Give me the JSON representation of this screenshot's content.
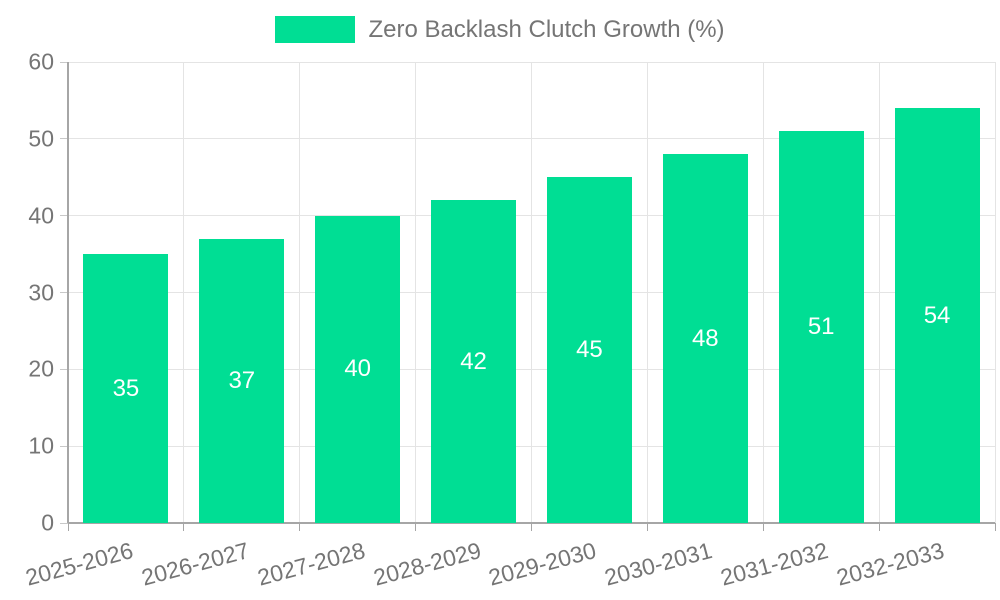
{
  "chart_data": {
    "type": "bar",
    "title": "",
    "legend": {
      "label": "Zero Backlash Clutch Growth (%)",
      "position": "top-center"
    },
    "categories": [
      "2025-2026",
      "2026-2027",
      "2027-2028",
      "2028-2029",
      "2029-2030",
      "2030-2031",
      "2031-2032",
      "2032-2033"
    ],
    "series": [
      {
        "name": "Zero Backlash Clutch Growth (%)",
        "values": [
          35,
          37,
          40,
          42,
          45,
          48,
          51,
          54
        ]
      }
    ],
    "xlabel": "",
    "ylabel": "",
    "ylim": [
      0,
      60
    ],
    "yticks": [
      0,
      10,
      20,
      30,
      40,
      50,
      60
    ],
    "grid": true,
    "bar_labels_visible": true,
    "x_label_rotation_deg": 15
  },
  "colors": {
    "bar": "#00DE94",
    "bar_label_text": "#ffffff",
    "axis_text": "#757575",
    "gridline": "#e4e4e4",
    "axis_line": "#a6a6a6",
    "tick_mark": "#c8c8c8",
    "background": "#ffffff"
  }
}
